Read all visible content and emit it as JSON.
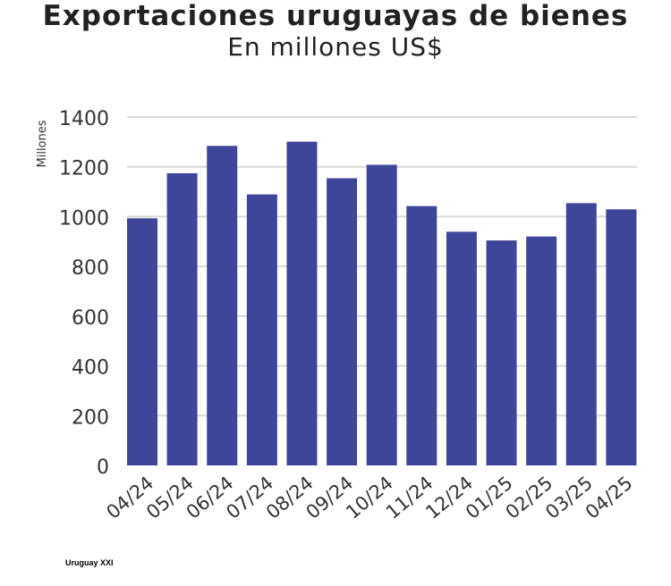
{
  "chart_data": {
    "type": "bar",
    "title": "Exportaciones uruguayas de bienes",
    "subtitle": "En millones US$",
    "ylabel": "Millones",
    "xlabel": "",
    "categories": [
      "04/24",
      "05/24",
      "06/24",
      "07/24",
      "08/24",
      "09/24",
      "10/24",
      "11/24",
      "12/24",
      "01/25",
      "02/25",
      "03/25",
      "04/25"
    ],
    "values": [
      993,
      1174,
      1284,
      1089,
      1301,
      1154,
      1208,
      1042,
      939,
      904,
      920,
      1054,
      1029
    ],
    "ylim": [
      0,
      1400
    ],
    "yticks": [
      0,
      200,
      400,
      600,
      800,
      1000,
      1200,
      1400
    ],
    "grid": true,
    "bar_color": "#3f4598",
    "source": "Uruguay XXI"
  }
}
